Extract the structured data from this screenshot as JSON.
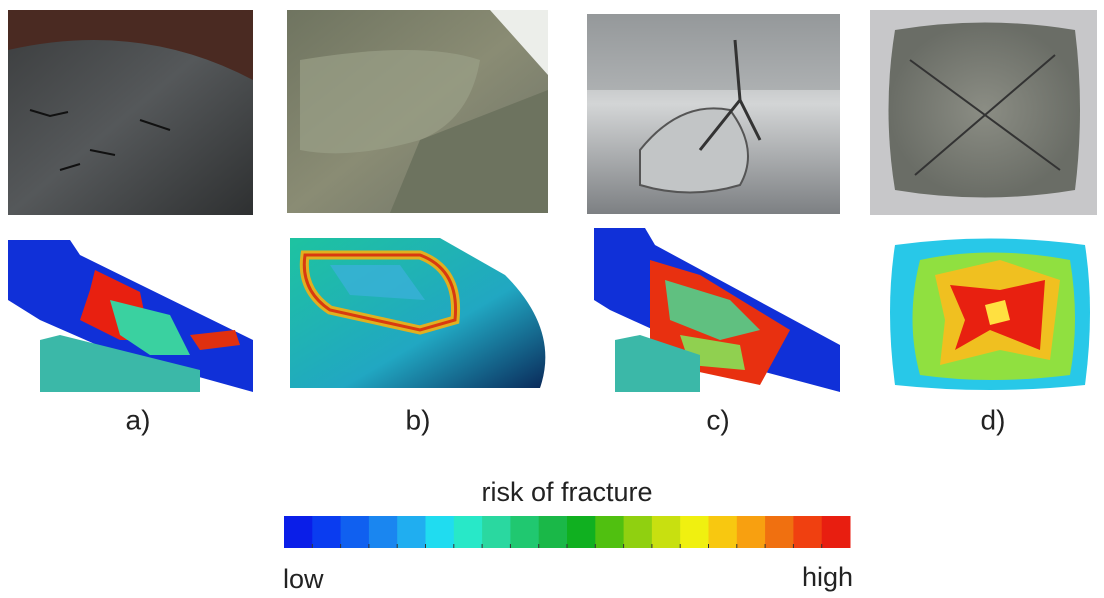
{
  "panels": [
    {
      "label": "a)"
    },
    {
      "label": "b)"
    },
    {
      "label": "c)"
    },
    {
      "label": "d)"
    }
  ],
  "colorbar": {
    "title": "risk of fracture",
    "low": "low",
    "high": "high"
  }
}
